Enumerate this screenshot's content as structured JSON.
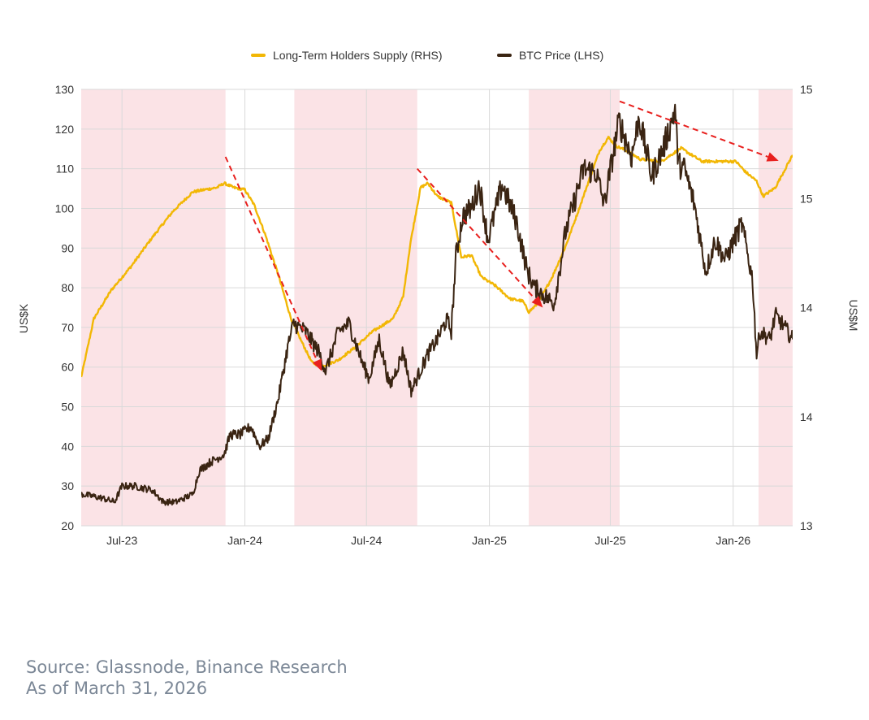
{
  "chart_data": {
    "type": "line",
    "title": "",
    "legend": [
      {
        "name": "Long-Term Holders Supply (RHS)",
        "color": "#F2B705"
      },
      {
        "name": "BTC Price (LHS)",
        "color": "#3a2412"
      }
    ],
    "ylabel_left": "US$K",
    "ylabel_right": "US$M",
    "ylim_left": [
      20,
      130
    ],
    "yticks_left": [
      20,
      30,
      40,
      50,
      60,
      70,
      80,
      90,
      100,
      110,
      120,
      130
    ],
    "ylim_right": [
      13.0,
      15.0
    ],
    "yticks_right": [
      {
        "label": "13",
        "value": 13.0
      },
      {
        "label": "14",
        "value": 13.5
      },
      {
        "label": "14",
        "value": 14.0
      },
      {
        "label": "15",
        "value": 14.5
      },
      {
        "label": "15",
        "value": 15.0
      }
    ],
    "x_domain": [
      "2023-05-01",
      "2026-03-31"
    ],
    "xticks": [
      {
        "label": "Jul-23",
        "date": "2023-07-01"
      },
      {
        "label": "Jan-24",
        "date": "2024-01-01"
      },
      {
        "label": "Jul-24",
        "date": "2024-07-01"
      },
      {
        "label": "Jan-25",
        "date": "2025-01-01"
      },
      {
        "label": "Jul-25",
        "date": "2025-07-01"
      },
      {
        "label": "Jan-26",
        "date": "2026-01-01"
      }
    ],
    "shaded_periods": [
      {
        "start": "2023-05-01",
        "end": "2023-12-03"
      },
      {
        "start": "2024-03-15",
        "end": "2024-09-15"
      },
      {
        "start": "2025-03-01",
        "end": "2025-07-15"
      },
      {
        "start": "2026-02-08",
        "end": "2026-03-31"
      }
    ],
    "shade_color": "#fbe3e6",
    "series": [
      {
        "name": "BTC Price (LHS)",
        "axis": "left",
        "color": "#3a2412",
        "points": [
          [
            "2023-05-01",
            28
          ],
          [
            "2023-06-01",
            27
          ],
          [
            "2023-06-20",
            26
          ],
          [
            "2023-07-01",
            30
          ],
          [
            "2023-07-20",
            30
          ],
          [
            "2023-08-15",
            29
          ],
          [
            "2023-09-01",
            26
          ],
          [
            "2023-09-20",
            26
          ],
          [
            "2023-10-15",
            28
          ],
          [
            "2023-10-25",
            34
          ],
          [
            "2023-11-10",
            36
          ],
          [
            "2023-12-01",
            38
          ],
          [
            "2023-12-10",
            43
          ],
          [
            "2023-12-25",
            43
          ],
          [
            "2024-01-10",
            45
          ],
          [
            "2024-01-23",
            40
          ],
          [
            "2024-02-05",
            42
          ],
          [
            "2024-02-20",
            52
          ],
          [
            "2024-03-05",
            65
          ],
          [
            "2024-03-14",
            71
          ],
          [
            "2024-04-01",
            69
          ],
          [
            "2024-04-20",
            64
          ],
          [
            "2024-05-01",
            59
          ],
          [
            "2024-05-20",
            69
          ],
          [
            "2024-06-05",
            71
          ],
          [
            "2024-06-25",
            61
          ],
          [
            "2024-07-05",
            57
          ],
          [
            "2024-07-20",
            67
          ],
          [
            "2024-08-05",
            55
          ],
          [
            "2024-08-25",
            64
          ],
          [
            "2024-09-06",
            54
          ],
          [
            "2024-09-30",
            63
          ],
          [
            "2024-10-15",
            67
          ],
          [
            "2024-10-29",
            72
          ],
          [
            "2024-11-05",
            69
          ],
          [
            "2024-11-12",
            88
          ],
          [
            "2024-11-22",
            98
          ],
          [
            "2024-12-05",
            100
          ],
          [
            "2024-12-17",
            106
          ],
          [
            "2024-12-30",
            92
          ],
          [
            "2025-01-20",
            106
          ],
          [
            "2025-02-10",
            97
          ],
          [
            "2025-02-27",
            84
          ],
          [
            "2025-03-10",
            80
          ],
          [
            "2025-04-08",
            76
          ],
          [
            "2025-04-25",
            94
          ],
          [
            "2025-05-22",
            110
          ],
          [
            "2025-06-10",
            109
          ],
          [
            "2025-06-22",
            101
          ],
          [
            "2025-07-14",
            122
          ],
          [
            "2025-08-02",
            113
          ],
          [
            "2025-08-13",
            123
          ],
          [
            "2025-09-01",
            108
          ],
          [
            "2025-09-20",
            116
          ],
          [
            "2025-10-06",
            125
          ],
          [
            "2025-10-11",
            111
          ],
          [
            "2025-10-20",
            110
          ],
          [
            "2025-11-04",
            101
          ],
          [
            "2025-11-21",
            84
          ],
          [
            "2025-12-05",
            92
          ],
          [
            "2025-12-20",
            87
          ],
          [
            "2026-01-05",
            93
          ],
          [
            "2026-01-14",
            96
          ],
          [
            "2026-01-30",
            82
          ],
          [
            "2026-02-05",
            63
          ],
          [
            "2026-02-10",
            69
          ],
          [
            "2026-02-25",
            67
          ],
          [
            "2026-03-05",
            73
          ],
          [
            "2026-03-15",
            71
          ],
          [
            "2026-03-31",
            67
          ]
        ]
      },
      {
        "name": "Long-Term Holders Supply (RHS)",
        "axis": "right",
        "color": "#F2B705",
        "points": [
          [
            "2023-05-01",
            13.68
          ],
          [
            "2023-05-20",
            13.95
          ],
          [
            "2023-06-15",
            14.08
          ],
          [
            "2023-07-15",
            14.19
          ],
          [
            "2023-08-15",
            14.32
          ],
          [
            "2023-09-15",
            14.44
          ],
          [
            "2023-10-15",
            14.53
          ],
          [
            "2023-11-01",
            14.54
          ],
          [
            "2023-11-20",
            14.55
          ],
          [
            "2023-12-01",
            14.57
          ],
          [
            "2023-12-15",
            14.55
          ],
          [
            "2024-01-01",
            14.54
          ],
          [
            "2024-01-15",
            14.47
          ],
          [
            "2024-02-01",
            14.33
          ],
          [
            "2024-02-20",
            14.15
          ],
          [
            "2024-03-10",
            13.95
          ],
          [
            "2024-03-25",
            13.85
          ],
          [
            "2024-04-10",
            13.75
          ],
          [
            "2024-04-25",
            13.73
          ],
          [
            "2024-05-20",
            13.76
          ],
          [
            "2024-06-15",
            13.82
          ],
          [
            "2024-07-10",
            13.89
          ],
          [
            "2024-08-10",
            13.95
          ],
          [
            "2024-08-25",
            14.05
          ],
          [
            "2024-09-05",
            14.3
          ],
          [
            "2024-09-20",
            14.55
          ],
          [
            "2024-10-01",
            14.57
          ],
          [
            "2024-10-15",
            14.51
          ],
          [
            "2024-11-05",
            14.48
          ],
          [
            "2024-11-20",
            14.23
          ],
          [
            "2024-12-05",
            14.24
          ],
          [
            "2024-12-20",
            14.14
          ],
          [
            "2025-01-10",
            14.1
          ],
          [
            "2025-02-01",
            14.04
          ],
          [
            "2025-02-20",
            14.03
          ],
          [
            "2025-03-01",
            13.98
          ],
          [
            "2025-03-15",
            14.02
          ],
          [
            "2025-04-05",
            14.14
          ],
          [
            "2025-04-25",
            14.28
          ],
          [
            "2025-05-15",
            14.45
          ],
          [
            "2025-06-01",
            14.6
          ],
          [
            "2025-06-15",
            14.72
          ],
          [
            "2025-06-28",
            14.78
          ],
          [
            "2025-07-10",
            14.74
          ],
          [
            "2025-07-25",
            14.72
          ],
          [
            "2025-08-15",
            14.68
          ],
          [
            "2025-09-15",
            14.67
          ],
          [
            "2025-10-15",
            14.73
          ],
          [
            "2025-11-15",
            14.67
          ],
          [
            "2025-12-10",
            14.67
          ],
          [
            "2026-01-05",
            14.67
          ],
          [
            "2026-01-20",
            14.62
          ],
          [
            "2026-02-05",
            14.58
          ],
          [
            "2026-02-15",
            14.51
          ],
          [
            "2026-03-05",
            14.55
          ],
          [
            "2026-03-31",
            14.7
          ]
        ]
      }
    ],
    "annotations": [
      {
        "type": "arrow",
        "color": "#e8201e",
        "from": [
          "2023-12-03",
          113
        ],
        "to": [
          "2024-04-25",
          59
        ]
      },
      {
        "type": "arrow",
        "color": "#e8201e",
        "from": [
          "2024-09-15",
          110
        ],
        "to": [
          "2025-03-22",
          75
        ]
      },
      {
        "type": "arrow",
        "color": "#e8201e",
        "from": [
          "2025-07-15",
          127
        ],
        "to": [
          "2026-03-10",
          112
        ]
      }
    ]
  },
  "footer": {
    "source_line": "Source: Glassnode, Binance Research",
    "date_line": "As of March 31, 2026"
  }
}
